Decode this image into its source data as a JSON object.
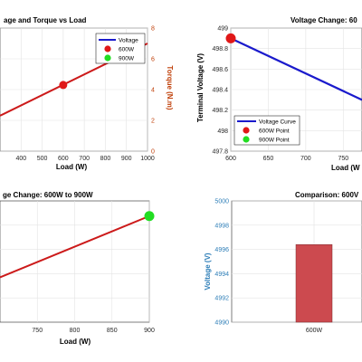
{
  "colors": {
    "voltage_line": "#1a1acc",
    "torque_line": "#cc1a1a",
    "point_600w": "#e01818",
    "point_900w": "#22dd22",
    "bar": "#cc4a4f",
    "torque_axis": "#c0400a",
    "voltage_axis_blue": "#2f7fb8"
  },
  "chart_data": [
    {
      "type": "line",
      "title": "age and Torque vs Load",
      "xlabel": "Load (W)",
      "ylabel_right": "Torque (N.m)",
      "x_ticks": [
        "400",
        "500",
        "600",
        "700",
        "800",
        "900",
        "1000"
      ],
      "y_right_ticks": [
        "0",
        "2",
        "4",
        "6",
        "8"
      ],
      "xlim": [
        300,
        1000
      ],
      "ylim_right": [
        0,
        8
      ],
      "series": [
        {
          "name": "Voltage",
          "role": "legend-only"
        },
        {
          "role": "torque",
          "x": [
            300,
            1000
          ],
          "y": [
            2.3,
            7.0
          ]
        }
      ],
      "markers": [
        {
          "name": "600W",
          "x": 600,
          "y": 4.3
        },
        {
          "name": "900W"
        }
      ],
      "legend": [
        "Voltage",
        "600W",
        "900W"
      ],
      "legend_position": "top-right",
      "grid": true
    },
    {
      "type": "line",
      "title": "Voltage Change: 60",
      "xlabel": "Load (W",
      "ylabel": "Terminal Voltage (V)",
      "x_ticks": [
        "600",
        "650",
        "700",
        "750"
      ],
      "y_ticks": [
        "497.8",
        "498",
        "498.2",
        "498.4",
        "498.6",
        "498.8",
        "499"
      ],
      "xlim": [
        600,
        775
      ],
      "ylim": [
        497.8,
        499
      ],
      "series": [
        {
          "name": "Voltage Curve",
          "x": [
            600,
            775
          ],
          "y": [
            498.9,
            498.3
          ]
        }
      ],
      "markers": [
        {
          "name": "600W Point",
          "x": 600,
          "y": 498.9
        },
        {
          "name": "900W Point"
        }
      ],
      "legend": [
        "Voltage Curve",
        "600W Point",
        "900W Point"
      ],
      "legend_position": "bottom-left",
      "grid": true
    },
    {
      "type": "line",
      "title": "ge Change: 600W to 900W",
      "xlabel": "Load (W)",
      "x_ticks": [
        "750",
        "800",
        "850",
        "900"
      ],
      "xlim": [
        700,
        900
      ],
      "series": [
        {
          "x": [
            700,
            900
          ],
          "y": [
            0.37,
            0.875
          ]
        }
      ],
      "markers": [
        {
          "name": "900W",
          "x": 900,
          "y": 0.875
        }
      ],
      "grid": true
    },
    {
      "type": "bar",
      "title": "Comparison: 600V",
      "ylabel": "Voltage (V)",
      "categories": [
        "600W"
      ],
      "values": [
        4996.4
      ],
      "y_ticks": [
        "4990",
        "4992",
        "4994",
        "4996",
        "4998",
        "5000"
      ],
      "ylim": [
        4990,
        5000
      ],
      "grid": true
    }
  ]
}
